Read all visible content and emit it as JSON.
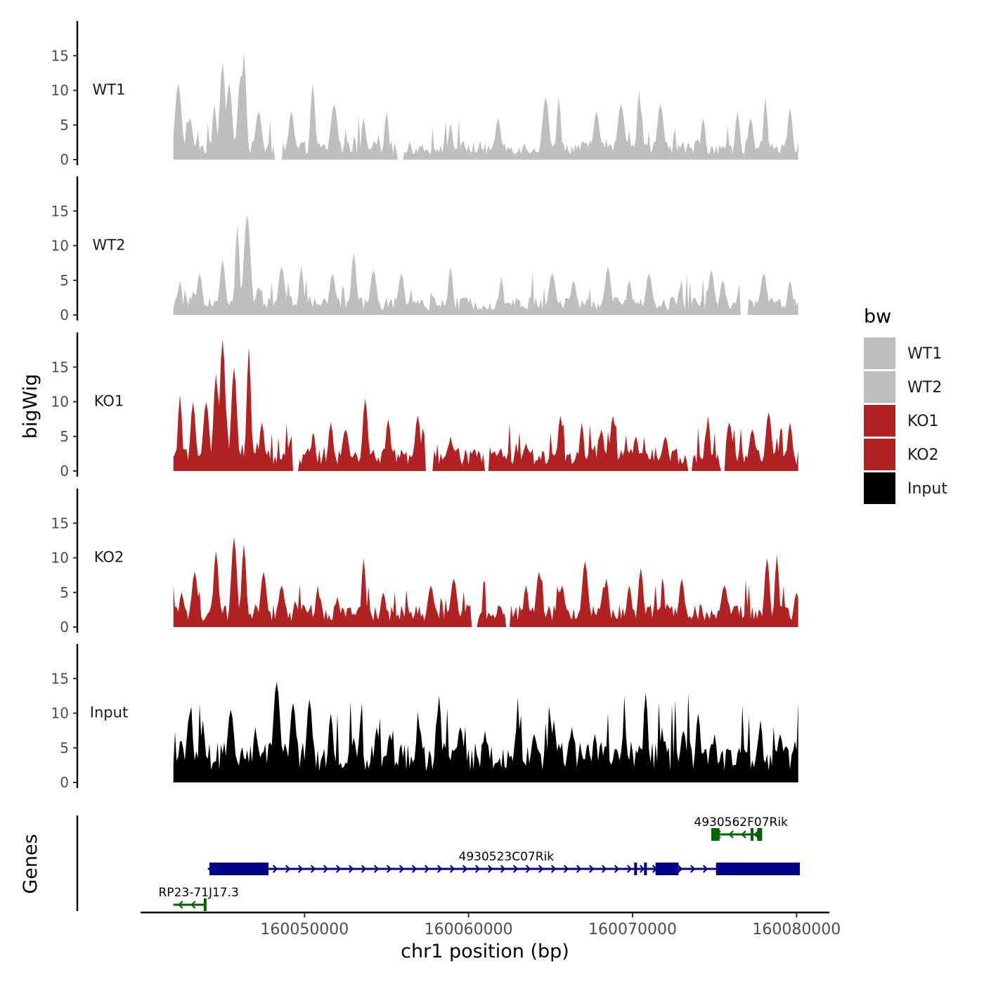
{
  "chart_data": {
    "type": "area",
    "title": "",
    "xlabel": "chr1 position (bp)",
    "ylabel": "bigWig",
    "genes_label": "Genes",
    "xlim": [
      160040000,
      160082000
    ],
    "x_ticks": [
      160050000,
      160060000,
      160070000,
      160080000
    ],
    "x_tick_labels": [
      "160050000",
      "160060000",
      "160070000",
      "160080000"
    ],
    "ylim": [
      0,
      20
    ],
    "y_ticks": [
      0,
      5,
      10,
      15
    ],
    "y_tick_labels": [
      "0",
      "5",
      "10",
      "15"
    ],
    "data_x_range": [
      160042000,
      160080100
    ],
    "legend": {
      "title": "bw",
      "entries": [
        {
          "label": "WT1",
          "color": "#bebebe"
        },
        {
          "label": "WT2",
          "color": "#bebebe"
        },
        {
          "label": "KO1",
          "color": "#b22222"
        },
        {
          "label": "KO2",
          "color": "#b22222"
        },
        {
          "label": "Input",
          "color": "#000000"
        }
      ]
    },
    "series": [
      {
        "name": "WT1",
        "color": "#bebebe",
        "gaps": [
          [
            160048200,
            160048600
          ],
          [
            160055700,
            160056000
          ]
        ],
        "peaks": [
          [
            160042300,
            11
          ],
          [
            160043000,
            6
          ],
          [
            160044500,
            8
          ],
          [
            160045000,
            14
          ],
          [
            160045400,
            11
          ],
          [
            160046100,
            12
          ],
          [
            160046300,
            15.5
          ],
          [
            160047200,
            7
          ],
          [
            160049200,
            7
          ],
          [
            160050500,
            11
          ],
          [
            160051800,
            8
          ],
          [
            160053600,
            6
          ],
          [
            160055000,
            7
          ],
          [
            160058900,
            5
          ],
          [
            160061800,
            6
          ],
          [
            160064700,
            9
          ],
          [
            160065500,
            9
          ],
          [
            160067800,
            7
          ],
          [
            160069300,
            8
          ],
          [
            160070400,
            10
          ],
          [
            160071700,
            8
          ],
          [
            160074300,
            6
          ],
          [
            160076400,
            7
          ],
          [
            160077200,
            6
          ],
          [
            160078100,
            9
          ],
          [
            160079600,
            7.5
          ]
        ]
      },
      {
        "name": "WT2",
        "color": "#bebebe",
        "gaps": [
          [
            160076600,
            160077000
          ]
        ],
        "peaks": [
          [
            160042400,
            5
          ],
          [
            160043600,
            6
          ],
          [
            160045000,
            8
          ],
          [
            160045900,
            13
          ],
          [
            160046500,
            14.5
          ],
          [
            160047200,
            4
          ],
          [
            160048600,
            7
          ],
          [
            160049800,
            7
          ],
          [
            160051700,
            6
          ],
          [
            160053000,
            9
          ],
          [
            160054200,
            6.5
          ],
          [
            160055900,
            6
          ],
          [
            160058900,
            7
          ],
          [
            160062000,
            5.5
          ],
          [
            160065100,
            6
          ],
          [
            160066400,
            5
          ],
          [
            160068500,
            7
          ],
          [
            160069800,
            5
          ],
          [
            160071000,
            6
          ],
          [
            160072900,
            4
          ],
          [
            160074800,
            6.5
          ],
          [
            160075500,
            5
          ],
          [
            160076600,
            5
          ],
          [
            160078000,
            6
          ],
          [
            160079600,
            5
          ]
        ]
      },
      {
        "name": "KO1",
        "color": "#b22222",
        "gaps": [
          [
            160049300,
            160049600
          ],
          [
            160057400,
            160057800
          ],
          [
            160061000,
            160061200
          ],
          [
            160073400,
            160073600
          ],
          [
            160075400,
            160075600
          ]
        ],
        "peaks": [
          [
            160042400,
            11
          ],
          [
            160043200,
            10
          ],
          [
            160044000,
            10
          ],
          [
            160044600,
            14
          ],
          [
            160045000,
            19
          ],
          [
            160045700,
            15
          ],
          [
            160046600,
            18
          ],
          [
            160047400,
            7
          ],
          [
            160049200,
            5
          ],
          [
            160051600,
            7
          ],
          [
            160052500,
            6
          ],
          [
            160053700,
            10.5
          ],
          [
            160055100,
            7.5
          ],
          [
            160056900,
            8
          ],
          [
            160058900,
            5
          ],
          [
            160061200,
            4
          ],
          [
            160063500,
            4
          ],
          [
            160065600,
            8
          ],
          [
            160066900,
            7
          ],
          [
            160068100,
            6
          ],
          [
            160068800,
            8
          ],
          [
            160070200,
            5
          ],
          [
            160072000,
            5
          ],
          [
            160074600,
            8
          ],
          [
            160075900,
            7
          ],
          [
            160077300,
            6
          ],
          [
            160078300,
            8.5
          ],
          [
            160079600,
            7
          ]
        ]
      },
      {
        "name": "KO2",
        "color": "#b22222",
        "gaps": [
          [
            160060200,
            160060500
          ],
          [
            160062300,
            160062500
          ]
        ],
        "peaks": [
          [
            160042500,
            5
          ],
          [
            160043300,
            8
          ],
          [
            160044600,
            11
          ],
          [
            160045700,
            13
          ],
          [
            160046300,
            12
          ],
          [
            160047500,
            8
          ],
          [
            160048600,
            6
          ],
          [
            160050800,
            6
          ],
          [
            160052000,
            4
          ],
          [
            160053600,
            10
          ],
          [
            160054800,
            5
          ],
          [
            160057700,
            6
          ],
          [
            160059100,
            7
          ],
          [
            160061800,
            2
          ],
          [
            160063500,
            6
          ],
          [
            160064300,
            8
          ],
          [
            160065700,
            6
          ],
          [
            160067100,
            9.5
          ],
          [
            160068400,
            7
          ],
          [
            160069800,
            6
          ],
          [
            160070500,
            8.5
          ],
          [
            160073000,
            7
          ],
          [
            160075600,
            6
          ],
          [
            160078200,
            10
          ],
          [
            160078800,
            10.5
          ],
          [
            160080000,
            5
          ]
        ]
      },
      {
        "name": "Input",
        "color": "#000000",
        "gaps": [],
        "peaks": [
          [
            160042500,
            6
          ],
          [
            160043000,
            10
          ],
          [
            160043800,
            9
          ],
          [
            160045500,
            10.5
          ],
          [
            160047000,
            8
          ],
          [
            160048300,
            14.5
          ],
          [
            160049300,
            11.5
          ],
          [
            160050300,
            12
          ],
          [
            160051600,
            10
          ],
          [
            160053000,
            6.5
          ],
          [
            160054400,
            8
          ],
          [
            160055200,
            7
          ],
          [
            160057000,
            8
          ],
          [
            160058200,
            12.5
          ],
          [
            160059500,
            8
          ],
          [
            160061000,
            7.5
          ],
          [
            160063000,
            8.5
          ],
          [
            160064000,
            7
          ],
          [
            160065200,
            9
          ],
          [
            160066300,
            8
          ],
          [
            160067700,
            7
          ],
          [
            160069500,
            8
          ],
          [
            160070800,
            13
          ],
          [
            160071800,
            8
          ],
          [
            160073100,
            7.5
          ],
          [
            160074000,
            10
          ],
          [
            160075000,
            7
          ],
          [
            160076500,
            5
          ],
          [
            160077800,
            9
          ],
          [
            160079000,
            7
          ],
          [
            160079900,
            6
          ]
        ]
      }
    ],
    "genes": [
      {
        "name": "4930562F07Rik",
        "color": "#006400",
        "strand": "-",
        "row": 1,
        "start": 160074800,
        "end": 160077900,
        "blocks": [
          [
            160074800,
            160075300
          ],
          [
            160077200,
            160077300
          ],
          [
            160077600,
            160077900
          ]
        ]
      },
      {
        "name": "4930523C07Rik",
        "color": "#00008b",
        "strand": "+",
        "row": 2,
        "start": 160044100,
        "end": 160080200,
        "blocks": [
          [
            160044200,
            160044600
          ],
          [
            160044600,
            160047800
          ],
          [
            160070100,
            160070200
          ],
          [
            160070700,
            160070800
          ],
          [
            160071400,
            160072800
          ],
          [
            160075100,
            160080200
          ]
        ]
      },
      {
        "name": "RP23-71J17.3",
        "color": "#006400",
        "strand": "-",
        "row": 3,
        "start": 160042000,
        "end": 160044000,
        "blocks": [
          [
            160043850,
            160044000
          ]
        ]
      }
    ]
  }
}
